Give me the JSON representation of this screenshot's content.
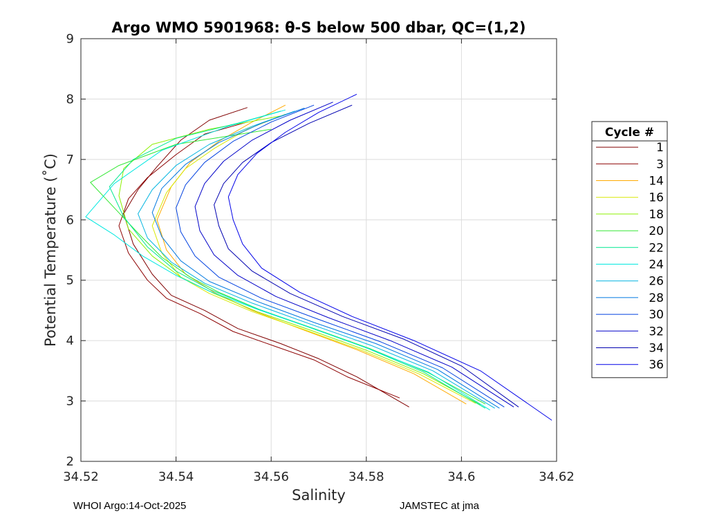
{
  "chart_data": {
    "type": "line",
    "title": "Argo WMO 5901968: θ-S below 500 dbar,  QC=(1,2)",
    "xlabel": "Salinity",
    "ylabel": "Potential Temperature (˚C)",
    "xlim": [
      34.52,
      34.62
    ],
    "ylim": [
      2,
      9
    ],
    "xticks": [
      "34.52",
      "34.54",
      "34.56",
      "34.58",
      "34.6",
      "34.62"
    ],
    "yticks": [
      "2",
      "3",
      "4",
      "5",
      "6",
      "7",
      "8",
      "9"
    ],
    "grid": true,
    "legend": {
      "title": "Cycle #",
      "position": "right"
    },
    "series": [
      {
        "name": "1",
        "color": "#800000",
        "x": [
          34.555,
          34.547,
          34.541,
          34.536,
          34.532,
          34.529,
          34.531,
          34.535,
          34.539,
          34.546,
          34.553,
          34.562,
          34.57,
          34.578,
          34.589
        ],
        "y": [
          7.86,
          7.65,
          7.32,
          6.88,
          6.5,
          6.1,
          5.6,
          5.1,
          4.75,
          4.5,
          4.2,
          3.95,
          3.7,
          3.4,
          2.9
        ]
      },
      {
        "name": "3",
        "color": "#8c0000",
        "x": [
          34.555,
          34.546,
          34.54,
          34.534,
          34.53,
          34.528,
          34.53,
          34.534,
          34.538,
          34.545,
          34.552,
          34.561,
          34.569,
          34.576,
          34.587
        ],
        "y": [
          7.62,
          7.42,
          7.08,
          6.7,
          6.35,
          5.9,
          5.45,
          5.0,
          4.7,
          4.45,
          4.15,
          3.9,
          3.68,
          3.4,
          3.05
        ]
      },
      {
        "name": "14",
        "color": "#ffaa00",
        "x": [
          34.563,
          34.556,
          34.549,
          34.543,
          34.539,
          34.536,
          34.538,
          34.542,
          34.548,
          34.556,
          34.566,
          34.578,
          34.59,
          34.601
        ],
        "y": [
          7.9,
          7.62,
          7.3,
          6.95,
          6.55,
          6.0,
          5.5,
          5.1,
          4.8,
          4.5,
          4.2,
          3.85,
          3.45,
          2.95
        ]
      },
      {
        "name": "16",
        "color": "#d8e800",
        "x": [
          34.563,
          34.555,
          34.548,
          34.542,
          34.538,
          34.535,
          34.537,
          34.541,
          34.547,
          34.556,
          34.567,
          34.579,
          34.591,
          34.603
        ],
        "y": [
          7.75,
          7.5,
          7.18,
          6.85,
          6.45,
          5.9,
          5.45,
          5.05,
          4.78,
          4.48,
          4.18,
          3.84,
          3.45,
          2.96
        ]
      },
      {
        "name": "18",
        "color": "#8cf000",
        "x": [
          34.562,
          34.547,
          34.535,
          34.529,
          34.528,
          34.53,
          34.535,
          34.541,
          34.548,
          34.557,
          34.568,
          34.58,
          34.592,
          34.604
        ],
        "y": [
          7.72,
          7.5,
          7.25,
          6.85,
          6.4,
          5.85,
          5.4,
          5.05,
          4.78,
          4.48,
          4.18,
          3.84,
          3.45,
          2.94
        ]
      },
      {
        "name": "20",
        "color": "#33e833",
        "x": [
          34.56,
          34.54,
          34.528,
          34.522,
          34.527,
          34.532,
          34.537,
          34.543,
          34.549,
          34.558,
          34.569,
          34.581,
          34.593,
          34.605
        ],
        "y": [
          7.5,
          7.25,
          6.9,
          6.62,
          6.2,
          5.78,
          5.38,
          5.05,
          4.8,
          4.5,
          4.2,
          3.86,
          3.47,
          2.95
        ]
      },
      {
        "name": "22",
        "color": "#00e890",
        "x": [
          34.562,
          34.553,
          34.54,
          34.531,
          34.526,
          34.529,
          34.534,
          34.54,
          34.547,
          34.557,
          34.568,
          34.58,
          34.592,
          34.605
        ],
        "y": [
          7.8,
          7.6,
          7.35,
          7.0,
          6.55,
          6.05,
          5.55,
          5.15,
          4.85,
          4.53,
          4.22,
          3.88,
          3.48,
          2.88
        ]
      },
      {
        "name": "24",
        "color": "#00e8e0",
        "x": [
          34.563,
          34.551,
          34.537,
          34.527,
          34.521,
          34.527,
          34.533,
          34.54,
          34.547,
          34.557,
          34.568,
          34.58,
          34.593,
          34.606
        ],
        "y": [
          7.82,
          7.55,
          7.15,
          6.6,
          6.05,
          5.75,
          5.4,
          5.08,
          4.82,
          4.52,
          4.22,
          3.88,
          3.48,
          2.85
        ]
      },
      {
        "name": "26",
        "color": "#00b4e0",
        "x": [
          34.565,
          34.556,
          34.547,
          34.54,
          34.535,
          34.532,
          34.534,
          34.539,
          34.546,
          34.556,
          34.568,
          34.581,
          34.594,
          34.607
        ],
        "y": [
          7.8,
          7.55,
          7.25,
          6.9,
          6.5,
          6.1,
          5.7,
          5.3,
          4.95,
          4.62,
          4.28,
          3.92,
          3.5,
          2.88
        ]
      },
      {
        "name": "28",
        "color": "#0078e0",
        "x": [
          34.567,
          34.558,
          34.549,
          34.542,
          34.537,
          34.535,
          34.537,
          34.541,
          34.547,
          34.557,
          34.569,
          34.582,
          34.595,
          34.608
        ],
        "y": [
          7.85,
          7.6,
          7.28,
          6.92,
          6.52,
          6.12,
          5.72,
          5.32,
          4.98,
          4.65,
          4.3,
          3.95,
          3.52,
          2.88
        ]
      },
      {
        "name": "30",
        "color": "#0040e0",
        "x": [
          34.569,
          34.56,
          34.552,
          34.546,
          34.542,
          34.54,
          34.541,
          34.544,
          34.549,
          34.558,
          34.57,
          34.583,
          34.596,
          34.609
        ],
        "y": [
          7.9,
          7.62,
          7.3,
          6.95,
          6.58,
          6.2,
          5.8,
          5.4,
          5.05,
          4.7,
          4.35,
          3.98,
          3.55,
          2.9
        ]
      },
      {
        "name": "32",
        "color": "#0000c8",
        "x": [
          34.573,
          34.564,
          34.556,
          34.55,
          34.546,
          34.544,
          34.545,
          34.548,
          34.553,
          34.561,
          34.572,
          34.585,
          34.598,
          34.611
        ],
        "y": [
          7.95,
          7.65,
          7.32,
          6.97,
          6.6,
          6.22,
          5.82,
          5.42,
          5.08,
          4.73,
          4.38,
          4.0,
          3.56,
          2.9
        ]
      },
      {
        "name": "34",
        "color": "#0000b0",
        "x": [
          34.577,
          34.568,
          34.56,
          34.554,
          34.55,
          34.548,
          34.549,
          34.551,
          34.556,
          34.564,
          34.575,
          34.588,
          34.6,
          34.612
        ],
        "y": [
          7.9,
          7.6,
          7.28,
          6.95,
          6.6,
          6.25,
          5.9,
          5.52,
          5.15,
          4.78,
          4.4,
          4.02,
          3.58,
          2.9
        ]
      },
      {
        "name": "36",
        "color": "#0000e8",
        "x": [
          34.578,
          34.57,
          34.563,
          34.557,
          34.553,
          34.551,
          34.552,
          34.554,
          34.558,
          34.566,
          34.577,
          34.59,
          34.604,
          34.619
        ],
        "y": [
          8.08,
          7.78,
          7.45,
          7.1,
          6.75,
          6.38,
          6.0,
          5.6,
          5.2,
          4.8,
          4.4,
          4.0,
          3.5,
          2.68
        ]
      }
    ]
  },
  "footer": {
    "left": "WHOI Argo:14-Oct-2025",
    "right": "JAMSTEC at jma"
  }
}
